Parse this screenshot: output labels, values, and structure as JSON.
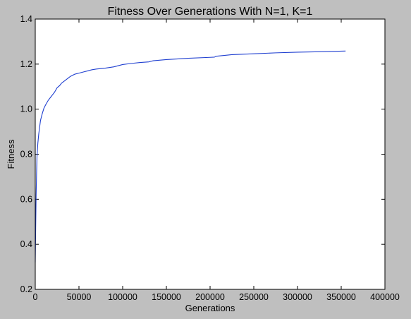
{
  "chart_data": {
    "type": "line",
    "title": "Fitness Over Generations With N=1, K=1",
    "xlabel": "Generations",
    "ylabel": "Fitness",
    "xlim": [
      0,
      400000
    ],
    "ylim": [
      0.2,
      1.4
    ],
    "xticks": [
      0,
      50000,
      100000,
      150000,
      200000,
      250000,
      300000,
      350000,
      400000
    ],
    "xtick_labels": [
      "0",
      "50000",
      "100000",
      "150000",
      "200000",
      "250000",
      "300000",
      "350000",
      "400000"
    ],
    "yticks": [
      0.2,
      0.4,
      0.6,
      0.8,
      1.0,
      1.2,
      1.4
    ],
    "ytick_labels": [
      "0.2",
      "0.4",
      "0.6",
      "0.8",
      "1.0",
      "1.2",
      "1.4"
    ],
    "grid": false,
    "series": [
      {
        "color": "#1f3fd0",
        "x": [
          0,
          500,
          1000,
          1500,
          2000,
          3000,
          4000,
          5000,
          6000,
          8000,
          10000,
          12000,
          15000,
          18000,
          20000,
          22000,
          25000,
          28000,
          30000,
          35000,
          40000,
          45000,
          50000,
          55000,
          60000,
          65000,
          70000,
          80000,
          90000,
          95000,
          100000,
          110000,
          120000,
          130000,
          135000,
          150000,
          175000,
          200000,
          205000,
          207000,
          215000,
          225000,
          250000,
          275000,
          300000,
          325000,
          355000
        ],
        "y": [
          0.32,
          0.47,
          0.62,
          0.71,
          0.79,
          0.85,
          0.89,
          0.92,
          0.95,
          0.98,
          1.005,
          1.02,
          1.04,
          1.055,
          1.065,
          1.075,
          1.095,
          1.105,
          1.115,
          1.13,
          1.145,
          1.155,
          1.16,
          1.165,
          1.17,
          1.175,
          1.178,
          1.182,
          1.188,
          1.193,
          1.198,
          1.203,
          1.207,
          1.21,
          1.215,
          1.22,
          1.226,
          1.23,
          1.231,
          1.235,
          1.238,
          1.242,
          1.246,
          1.25,
          1.253,
          1.255,
          1.258
        ]
      }
    ]
  }
}
